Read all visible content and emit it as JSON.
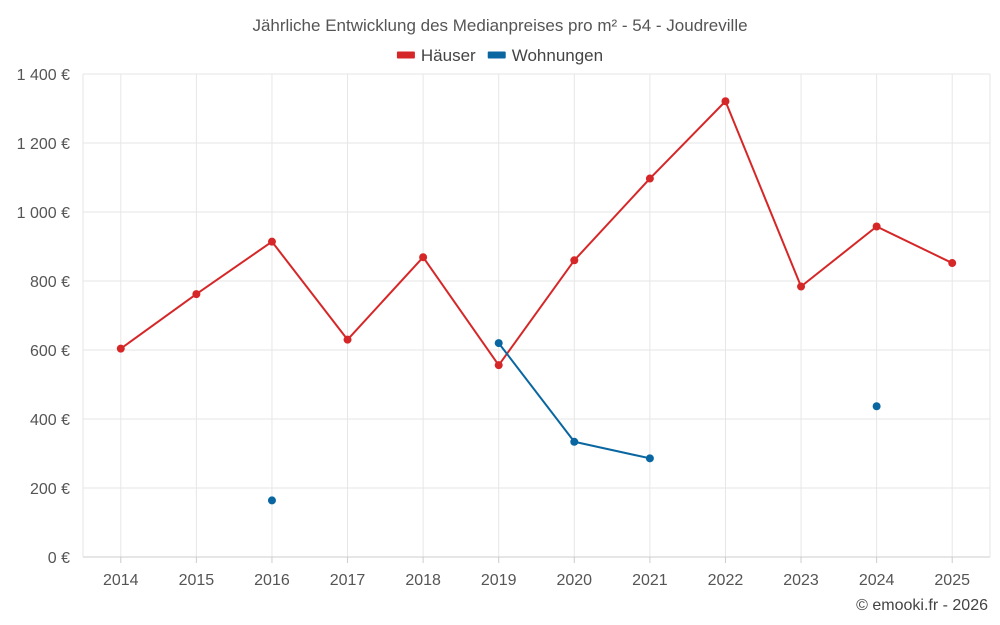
{
  "chart_data": {
    "type": "line",
    "title": "Jährliche Entwicklung des Medianpreises pro m² - 54 - Joudreville",
    "x": [
      "2014",
      "2015",
      "2016",
      "2017",
      "2018",
      "2019",
      "2020",
      "2021",
      "2022",
      "2023",
      "2024",
      "2025"
    ],
    "series": [
      {
        "name": "Häuser",
        "color": "#d62728",
        "values": [
          604,
          762,
          914,
          630,
          869,
          556,
          860,
          1097,
          1321,
          784,
          958,
          852
        ]
      },
      {
        "name": "Wohnungen",
        "color": "#0a66a0",
        "values": [
          null,
          null,
          164,
          null,
          null,
          620,
          334,
          286,
          null,
          null,
          437,
          null
        ]
      }
    ],
    "ylim": [
      0,
      1400
    ],
    "yticks": [
      0,
      200,
      400,
      600,
      800,
      1000,
      1200,
      1400
    ],
    "ytick_labels": [
      "0 €",
      "200 €",
      "400 €",
      "600 €",
      "800 €",
      "1 000 €",
      "1 200 €",
      "1 400 €"
    ],
    "xlabel": "",
    "ylabel": "",
    "grid": true,
    "legend_position": "top-center"
  },
  "credit": "© emooki.fr - 2026"
}
